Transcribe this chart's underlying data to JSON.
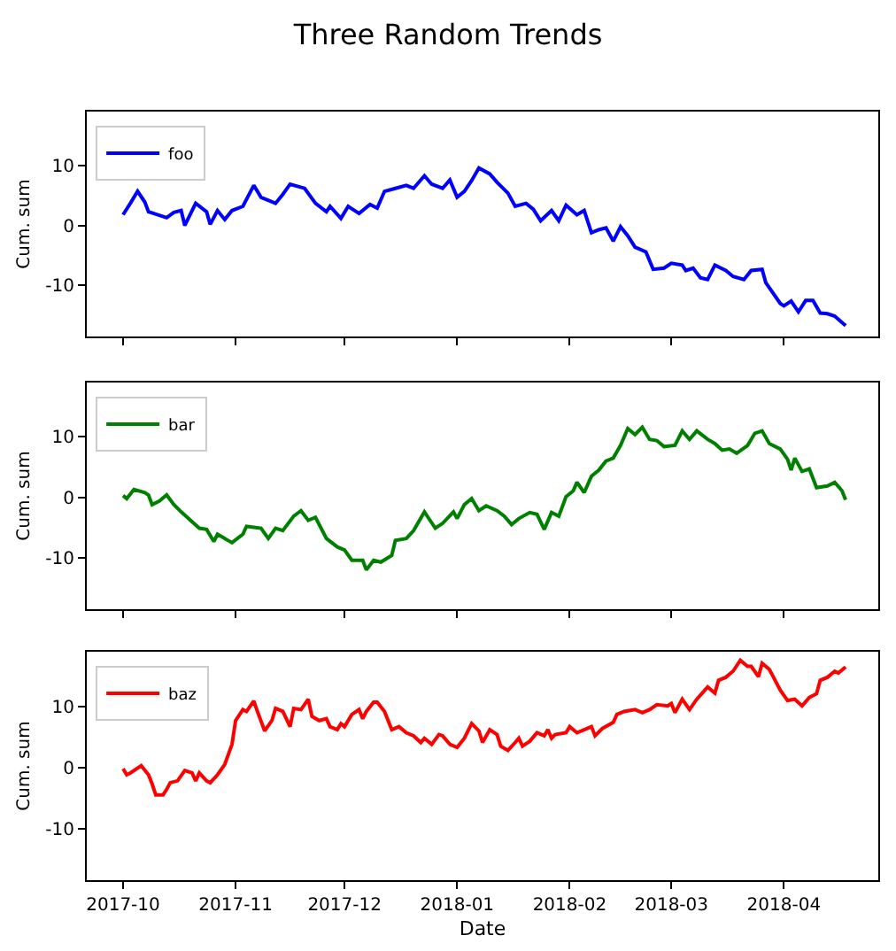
{
  "chart_data": [
    {
      "type": "line",
      "title": "Three Random Trends",
      "ylabel": "Cum. sum",
      "legend": "top left",
      "grid": false,
      "tick_labels": "y",
      "xlim": [
        "2017-09-21",
        "2018-04-27"
      ],
      "ylim": [
        -18.5,
        19
      ],
      "yticks": [
        -10,
        0,
        10
      ],
      "xticks": [
        {
          "value": "2017-10-01",
          "label": null
        },
        {
          "value": "2017-11-01",
          "label": null
        },
        {
          "value": "2017-12-01",
          "label": null
        },
        {
          "value": "2018-01-01",
          "label": null
        },
        {
          "value": "2018-02-01",
          "label": null
        },
        {
          "value": "2018-03-01",
          "label": null
        },
        {
          "value": "2018-04-01",
          "label": null
        }
      ],
      "series": [
        {
          "name": "foo",
          "color": "#0000ff",
          "x": [
            "2017-10-01",
            "2017-10-03",
            "2017-10-05",
            "2017-10-07",
            "2017-10-08",
            "2017-10-13",
            "2017-10-15",
            "2017-10-17",
            "2017-10-18",
            "2017-10-21",
            "2017-10-24",
            "2017-10-25",
            "2017-10-27",
            "2017-10-29",
            "2017-10-31",
            "2017-11-03",
            "2017-11-06",
            "2017-11-08",
            "2017-11-12",
            "2017-11-14",
            "2017-11-16",
            "2017-11-20",
            "2017-11-23",
            "2017-11-26",
            "2017-11-27",
            "2017-11-30",
            "2017-12-02",
            "2017-12-05",
            "2017-12-08",
            "2017-12-10",
            "2017-12-12",
            "2017-12-15",
            "2017-12-18",
            "2017-12-20",
            "2017-12-23",
            "2017-12-25",
            "2017-12-28",
            "2017-12-30",
            "2018-01-01",
            "2018-01-03",
            "2018-01-05",
            "2018-01-07",
            "2018-01-10",
            "2018-01-12",
            "2018-01-15",
            "2018-01-17",
            "2018-01-20",
            "2018-01-22",
            "2018-01-24",
            "2018-01-27",
            "2018-01-29",
            "2018-01-31",
            "2018-02-03",
            "2018-02-05",
            "2018-02-07",
            "2018-02-09",
            "2018-02-11",
            "2018-02-13",
            "2018-02-15",
            "2018-02-17",
            "2018-02-19",
            "2018-02-22",
            "2018-02-24",
            "2018-02-27",
            "2018-03-01",
            "2018-03-04",
            "2018-03-05",
            "2018-03-07",
            "2018-03-09",
            "2018-03-11",
            "2018-03-13",
            "2018-03-16",
            "2018-03-18",
            "2018-03-21",
            "2018-03-23",
            "2018-03-26",
            "2018-03-27",
            "2018-03-31",
            "2018-04-01",
            "2018-04-03",
            "2018-04-05",
            "2018-04-07",
            "2018-04-09",
            "2018-04-11",
            "2018-04-13",
            "2018-04-15",
            "2018-04-18"
          ],
          "values": [
            1.8,
            3.7,
            5.7,
            3.9,
            2.3,
            1.3,
            2.2,
            2.5,
            0,
            3.7,
            2.3,
            0.2,
            2.5,
            1,
            2.5,
            3.2,
            6.7,
            4.7,
            3.7,
            5.2,
            6.9,
            6.2,
            3.7,
            2.3,
            3.2,
            1.2,
            3.2,
            2,
            3.5,
            2.9,
            5.7,
            6.2,
            6.7,
            6.2,
            8.3,
            6.9,
            6.2,
            7.6,
            4.7,
            5.7,
            7.5,
            9.6,
            8.6,
            7.2,
            5.4,
            3.2,
            3.7,
            2.7,
            0.8,
            2.5,
            0.8,
            3.4,
            1.8,
            2.5,
            -1.2,
            -0.7,
            -0.4,
            -2.6,
            -0.2,
            -1.7,
            -3.6,
            -4.4,
            -7.3,
            -7.1,
            -6.3,
            -6.6,
            -7.5,
            -7.1,
            -8.7,
            -9,
            -6.6,
            -7.5,
            -8.5,
            -9,
            -7.5,
            -7.3,
            -9.5,
            -13,
            -13.4,
            -12.6,
            -14.4,
            -12.5,
            -12.5,
            -14.6,
            -14.7,
            -15.1,
            -16.7
          ]
        }
      ]
    },
    {
      "type": "line",
      "ylabel": "Cum. sum",
      "legend": "top left",
      "grid": false,
      "tick_labels": "y",
      "xlim": [
        "2017-09-21",
        "2018-04-27"
      ],
      "ylim": [
        -18.5,
        19
      ],
      "yticks": [
        -10,
        0,
        10
      ],
      "xticks": [
        {
          "value": "2017-10-01",
          "label": null
        },
        {
          "value": "2017-11-01",
          "label": null
        },
        {
          "value": "2017-12-01",
          "label": null
        },
        {
          "value": "2018-01-01",
          "label": null
        },
        {
          "value": "2018-02-01",
          "label": null
        },
        {
          "value": "2018-03-01",
          "label": null
        },
        {
          "value": "2018-04-01",
          "label": null
        }
      ],
      "series": [
        {
          "name": "bar",
          "color": "#008000",
          "x": [
            "2017-10-01",
            "2017-10-02",
            "2017-10-04",
            "2017-10-07",
            "2017-10-08",
            "2017-10-09",
            "2017-10-11",
            "2017-10-13",
            "2017-10-15",
            "2017-10-17",
            "2017-10-19",
            "2017-10-22",
            "2017-10-24",
            "2017-10-26",
            "2017-10-27",
            "2017-10-31",
            "2017-11-03",
            "2017-11-04",
            "2017-11-08",
            "2017-11-10",
            "2017-11-12",
            "2017-11-14",
            "2017-11-17",
            "2017-11-19",
            "2017-11-21",
            "2017-11-23",
            "2017-11-26",
            "2017-11-29",
            "2017-12-01",
            "2017-12-03",
            "2017-12-06",
            "2017-12-07",
            "2017-12-09",
            "2017-12-11",
            "2017-12-14",
            "2017-12-15",
            "2017-12-18",
            "2017-12-20",
            "2017-12-23",
            "2017-12-24",
            "2017-12-26",
            "2017-12-28",
            "2017-12-31",
            "2018-01-01",
            "2018-01-03",
            "2018-01-05",
            "2018-01-07",
            "2018-01-09",
            "2018-01-12",
            "2018-01-14",
            "2018-01-16",
            "2018-01-18",
            "2018-01-21",
            "2018-01-23",
            "2018-01-25",
            "2018-01-27",
            "2018-01-29",
            "2018-01-31",
            "2018-02-02",
            "2018-02-03",
            "2018-02-05",
            "2018-02-07",
            "2018-02-09",
            "2018-02-11",
            "2018-02-13",
            "2018-02-15",
            "2018-02-17",
            "2018-02-19",
            "2018-02-21",
            "2018-02-23",
            "2018-02-25",
            "2018-02-27",
            "2018-03-02",
            "2018-03-04",
            "2018-03-06",
            "2018-03-08",
            "2018-03-11",
            "2018-03-13",
            "2018-03-15",
            "2018-03-17",
            "2018-03-19",
            "2018-03-22",
            "2018-03-24",
            "2018-03-26",
            "2018-03-28",
            "2018-03-31",
            "2018-04-02",
            "2018-04-03",
            "2018-04-04",
            "2018-04-06",
            "2018-04-08",
            "2018-04-10",
            "2018-04-13",
            "2018-04-15",
            "2018-04-17",
            "2018-04-18"
          ],
          "values": [
            0.3,
            -0.2,
            1.3,
            0.8,
            0.4,
            -1.2,
            -0.6,
            0.4,
            -1.2,
            -2.4,
            -3.5,
            -5.1,
            -5.3,
            -7.3,
            -6.1,
            -7.5,
            -6.1,
            -4.8,
            -5.1,
            -6.8,
            -5.1,
            -5.5,
            -3.1,
            -2.2,
            -3.8,
            -3.3,
            -6.8,
            -8.2,
            -8.7,
            -10.4,
            -10.4,
            -12,
            -10.4,
            -10.7,
            -9.6,
            -7.1,
            -6.8,
            -5.5,
            -2.4,
            -3.3,
            -5.1,
            -4.3,
            -2.4,
            -3.5,
            -1.2,
            -0.2,
            -2.2,
            -1.4,
            -2.2,
            -3.1,
            -4.5,
            -3.5,
            -2.5,
            -2.8,
            -5.3,
            -2.5,
            -3.1,
            0.1,
            1.1,
            2.5,
            0.8,
            3.5,
            4.5,
            6,
            6.5,
            8.6,
            11.4,
            10.4,
            11.6,
            9.6,
            9.4,
            8.4,
            8.6,
            11,
            9.6,
            11,
            9.6,
            8.9,
            7.8,
            8,
            7.3,
            8.6,
            10.6,
            11,
            8.9,
            8,
            6.3,
            4.5,
            6.5,
            4.3,
            4.7,
            1.6,
            1.9,
            2.5,
            1.1,
            -0.4
          ]
        }
      ]
    },
    {
      "type": "line",
      "xlabel": "Date",
      "ylabel": "Cum. sum",
      "legend": "top left",
      "grid": false,
      "xlim": [
        "2017-09-21",
        "2018-04-27"
      ],
      "ylim": [
        -18.5,
        19
      ],
      "yticks": [
        -10,
        0,
        10
      ],
      "xticks": [
        {
          "value": "2017-10-01",
          "label": "2017-10"
        },
        {
          "value": "2017-11-01",
          "label": "2017-11"
        },
        {
          "value": "2017-12-01",
          "label": "2017-12"
        },
        {
          "value": "2018-01-01",
          "label": "2018-01"
        },
        {
          "value": "2018-02-01",
          "label": "2018-02"
        },
        {
          "value": "2018-03-01",
          "label": "2018-03"
        },
        {
          "value": "2018-04-01",
          "label": "2018-04"
        }
      ],
      "series": [
        {
          "name": "baz",
          "color": "#ff0000",
          "x": [
            "2017-10-01",
            "2017-10-02",
            "2017-10-03",
            "2017-10-06",
            "2017-10-08",
            "2017-10-09",
            "2017-10-10",
            "2017-10-12",
            "2017-10-13",
            "2017-10-14",
            "2017-10-16",
            "2017-10-18",
            "2017-10-20",
            "2017-10-21",
            "2017-10-22",
            "2017-10-24",
            "2017-10-25",
            "2017-10-27",
            "2017-10-29",
            "2017-10-31",
            "2017-11-01",
            "2017-11-03",
            "2017-11-04",
            "2017-11-06",
            "2017-11-07",
            "2017-11-09",
            "2017-11-11",
            "2017-11-12",
            "2017-11-14",
            "2017-11-16",
            "2017-11-17",
            "2017-11-19",
            "2017-11-21",
            "2017-11-22",
            "2017-11-24",
            "2017-11-26",
            "2017-11-27",
            "2017-11-29",
            "2017-11-30",
            "2017-12-01",
            "2017-12-03",
            "2017-12-05",
            "2017-12-06",
            "2017-12-07",
            "2017-12-09",
            "2017-12-10",
            "2017-12-12",
            "2017-12-14",
            "2017-12-16",
            "2017-12-18",
            "2017-12-20",
            "2017-12-22",
            "2017-12-23",
            "2017-12-25",
            "2017-12-27",
            "2017-12-28",
            "2017-12-30",
            "2018-01-01",
            "2018-01-03",
            "2018-01-05",
            "2018-01-07",
            "2018-01-08",
            "2018-01-10",
            "2018-01-12",
            "2018-01-13",
            "2018-01-15",
            "2018-01-17",
            "2018-01-18",
            "2018-01-19",
            "2018-01-21",
            "2018-01-23",
            "2018-01-25",
            "2018-01-26",
            "2018-01-27",
            "2018-01-28",
            "2018-01-31",
            "2018-02-01",
            "2018-02-03",
            "2018-02-05",
            "2018-02-07",
            "2018-02-08",
            "2018-02-10",
            "2018-02-13",
            "2018-02-14",
            "2018-02-16",
            "2018-02-19",
            "2018-02-21",
            "2018-02-23",
            "2018-02-25",
            "2018-02-28",
            "2018-03-01",
            "2018-03-02",
            "2018-03-04",
            "2018-03-06",
            "2018-03-08",
            "2018-03-11",
            "2018-03-13",
            "2018-03-14",
            "2018-03-16",
            "2018-03-18",
            "2018-03-20",
            "2018-03-22",
            "2018-03-23",
            "2018-03-25",
            "2018-03-26",
            "2018-03-28",
            "2018-03-31",
            "2018-04-02",
            "2018-04-04",
            "2018-04-06",
            "2018-04-08",
            "2018-04-10",
            "2018-04-11",
            "2018-04-13",
            "2018-04-15",
            "2018-04-16",
            "2018-04-18"
          ],
          "values": [
            -0.2,
            -1.2,
            -0.9,
            0.3,
            -1.2,
            -2.7,
            -4.5,
            -4.5,
            -3.6,
            -2.5,
            -2.2,
            -0.5,
            -0.9,
            -2.2,
            -0.9,
            -2.2,
            -2.5,
            -1.2,
            0.5,
            3.8,
            7.7,
            9.5,
            9.2,
            10.9,
            9.2,
            6,
            7.7,
            9.7,
            9.2,
            6.7,
            9.7,
            9.5,
            11.2,
            8.4,
            7.7,
            8,
            6.7,
            6.2,
            7.2,
            6.7,
            8.7,
            9.5,
            8,
            9.2,
            10.7,
            10.7,
            9.2,
            6.2,
            6.7,
            5.7,
            5.2,
            4.1,
            4.8,
            3.8,
            5.4,
            5.2,
            3.8,
            3.3,
            4.8,
            7.2,
            6,
            4.1,
            6.2,
            5.4,
            3.5,
            2.8,
            4.1,
            4.8,
            3.5,
            4.3,
            5.7,
            5.2,
            6.2,
            4.8,
            5.4,
            5.7,
            6.7,
            5.7,
            6.2,
            6.7,
            5.2,
            6.4,
            7.4,
            8.7,
            9.2,
            9.5,
            9,
            9.5,
            10.3,
            10.1,
            10.5,
            9,
            11.2,
            9.5,
            11.2,
            13.2,
            12.2,
            14.3,
            14.8,
            15.8,
            17.6,
            16.6,
            16.6,
            14.9,
            17.1,
            16.1,
            12.7,
            11,
            11.2,
            10.1,
            11.5,
            12.1,
            14.3,
            14.8,
            15.8,
            15.5,
            16.5
          ]
        }
      ]
    }
  ]
}
